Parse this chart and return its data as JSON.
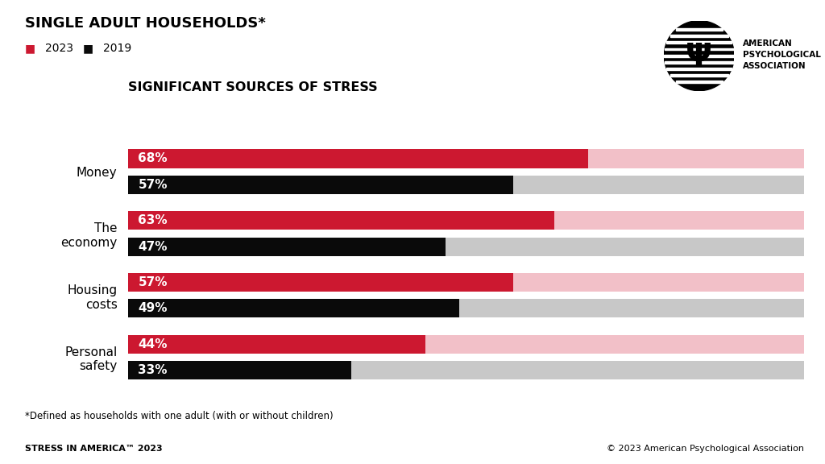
{
  "title": "SINGLE ADULT HOUSEHOLDS*",
  "subtitle": "SIGNIFICANT SOURCES OF STRESS",
  "legend": [
    "2023",
    "2019"
  ],
  "categories": [
    "Money",
    "The\neconomy",
    "Housing\ncosts",
    "Personal\nsafety"
  ],
  "values_2023": [
    68,
    63,
    57,
    44
  ],
  "values_2019": [
    57,
    47,
    49,
    33
  ],
  "max_value": 100,
  "color_2023": "#cc1830",
  "color_2023_bg": "#f2c0c8",
  "color_2019": "#0a0a0a",
  "color_2019_bg": "#c8c8c8",
  "footnote": "*Defined as households with one adult (with or without children)",
  "footer_left": "STRESS IN AMERICA™ 2023",
  "footer_right": "© 2023 American Psychological Association",
  "background_color": "#ffffff"
}
